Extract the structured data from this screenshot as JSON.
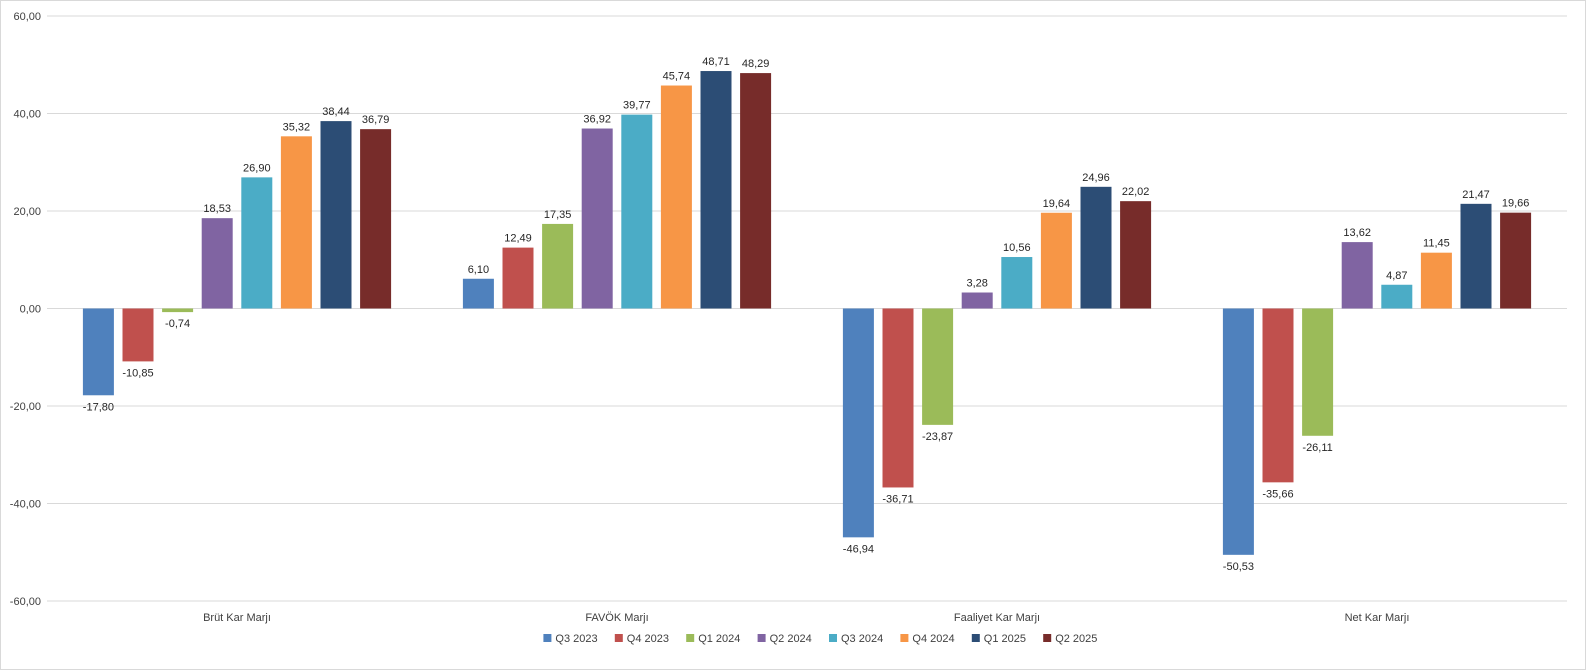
{
  "chart_data": {
    "type": "bar",
    "title": "",
    "xlabel": "",
    "ylabel": "",
    "ylim": [
      -60,
      60
    ],
    "ytick_step": 20,
    "ytick_labels": [
      "60,00",
      "40,00",
      "20,00",
      "0,00",
      "-20,00",
      "-40,00",
      "-60,00"
    ],
    "grid": true,
    "legend_position": "bottom",
    "categories": [
      "Brüt Kar Marjı",
      "FAVÖK Marjı",
      "Faaliyet Kar Marjı",
      "Net Kar Marjı"
    ],
    "series": [
      {
        "name": "Q3 2023",
        "color": "#4f81bd",
        "values": [
          -17.8,
          6.1,
          -46.94,
          -50.53
        ],
        "labels": [
          "-17,80",
          "6,10",
          "-46,94",
          "-50,53"
        ]
      },
      {
        "name": "Q4 2023",
        "color": "#c0504d",
        "values": [
          -10.85,
          12.49,
          -36.71,
          -35.66
        ],
        "labels": [
          "-10,85",
          "12,49",
          "-36,71",
          "-35,66"
        ]
      },
      {
        "name": "Q1 2024",
        "color": "#9bbb59",
        "values": [
          -0.74,
          17.35,
          -23.87,
          -26.11
        ],
        "labels": [
          "-0,74",
          "17,35",
          "-23,87",
          "-26,11"
        ]
      },
      {
        "name": "Q2 2024",
        "color": "#8064a2",
        "values": [
          18.53,
          36.92,
          3.28,
          13.62
        ],
        "labels": [
          "18,53",
          "36,92",
          "3,28",
          "13,62"
        ]
      },
      {
        "name": "Q3 2024",
        "color": "#4bacc6",
        "values": [
          26.9,
          39.77,
          10.56,
          4.87
        ],
        "labels": [
          "26,90",
          "39,77",
          "10,56",
          "4,87"
        ]
      },
      {
        "name": "Q4 2024",
        "color": "#f79646",
        "values": [
          35.32,
          45.74,
          19.64,
          11.45
        ],
        "labels": [
          "35,32",
          "45,74",
          "19,64",
          "11,45"
        ]
      },
      {
        "name": "Q1 2025",
        "color": "#2c4d75",
        "values": [
          38.44,
          48.71,
          24.96,
          21.47
        ],
        "labels": [
          "38,44",
          "48,71",
          "24,96",
          "21,47"
        ]
      },
      {
        "name": "Q2 2025",
        "color": "#772c2a",
        "values": [
          36.79,
          48.29,
          22.02,
          19.66
        ],
        "labels": [
          "36,79",
          "48,29",
          "22,02",
          "19,66"
        ]
      }
    ]
  }
}
